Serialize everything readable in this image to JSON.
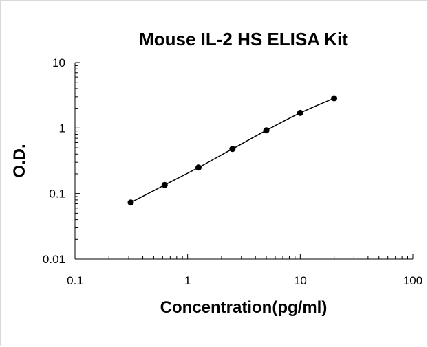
{
  "chart_data": {
    "type": "scatter",
    "title": "Mouse IL-2 HS ELISA Kit",
    "xlabel": "Concentration(pg/ml)",
    "ylabel": "O.D.",
    "xscale": "log",
    "yscale": "log",
    "xlim": [
      0.1,
      100
    ],
    "ylim": [
      0.01,
      10
    ],
    "x_ticks": [
      "0.1",
      "1",
      "10",
      "100"
    ],
    "y_ticks": [
      "0.01",
      "0.1",
      "1",
      "10"
    ],
    "grid": false,
    "legend": "none",
    "series": [
      {
        "x": [
          0.3125,
          0.625,
          1.25,
          2.5,
          5,
          10,
          20
        ],
        "y": [
          0.073,
          0.135,
          0.25,
          0.48,
          0.92,
          1.7,
          2.85
        ],
        "color": "#000000",
        "marker": "circle",
        "line": "smooth"
      }
    ]
  }
}
